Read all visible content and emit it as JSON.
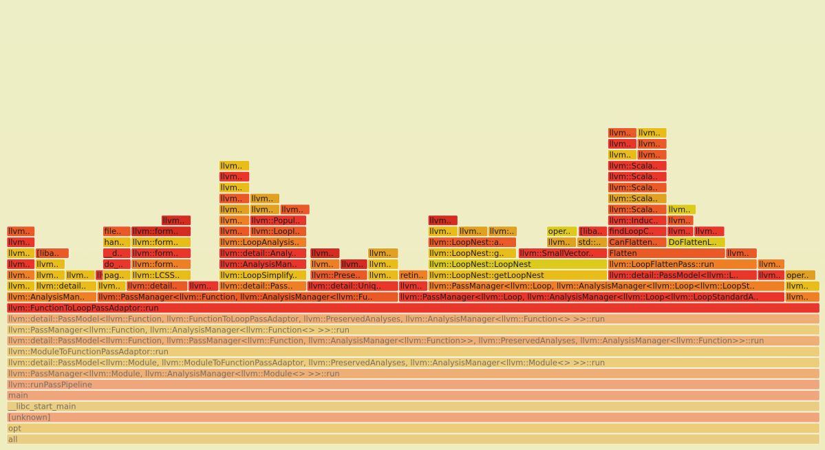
{
  "chart_data": {
    "type": "flamegraph",
    "x_unit": "width as percent of total samples",
    "colors": {
      "red": "#e8372a",
      "crimson": "#d42c1f",
      "orange_red": "#ea5a26",
      "orange": "#ef7f24",
      "dark_orange": "#e0a020",
      "gold": "#e8bd1a",
      "yellow": "#dccb1c",
      "salmon": "#f19a72",
      "tan": "#e9c878",
      "peach": "#efb26c",
      "light_orange": "#eea56b",
      "pale": "#ecc86f"
    },
    "frames": [
      {
        "label": "all",
        "depth": 0,
        "start": 0,
        "width": 100,
        "color": "tan",
        "dim": true
      },
      {
        "label": "opt",
        "depth": 1,
        "start": 0,
        "width": 100,
        "color": "pale",
        "dim": true
      },
      {
        "label": "[unknown]",
        "depth": 2,
        "start": 0,
        "width": 100,
        "color": "salmon",
        "dim": true
      },
      {
        "label": "__libc_start_main",
        "depth": 3,
        "start": 0,
        "width": 100,
        "color": "tan",
        "dim": true
      },
      {
        "label": "main",
        "depth": 4,
        "start": 0,
        "width": 100,
        "color": "salmon",
        "dim": true
      },
      {
        "label": "llvm::runPassPipeline",
        "depth": 5,
        "start": 0,
        "width": 100,
        "color": "salmon",
        "dim": true
      },
      {
        "label": "llvm::PassManager<llvm::Module, llvm::AnalysisManager<llvm::Module<> >>::run",
        "depth": 6,
        "start": 0,
        "width": 100,
        "color": "light_orange",
        "dim": true
      },
      {
        "label": "llvm::detail::PassModel<llvm::Module, llvm::ModuleToFunctionPassAdaptor, llvm::PreservedAnalyses, llvm::AnalysisManager<llvm::Module<> >>::run",
        "depth": 7,
        "start": 0,
        "width": 100,
        "color": "pale",
        "dim": true
      },
      {
        "label": "llvm::ModuleToFunctionPassAdaptor::run",
        "depth": 8,
        "start": 0,
        "width": 100,
        "color": "pale",
        "dim": true
      },
      {
        "label": "llvm::detail::PassModel<llvm::Function, llvm::PassManager<llvm::Function, llvm::AnalysisManager<llvm::Function>>, llvm::PreservedAnalyses, llvm::AnalysisManager<llvm::Function>>::run",
        "depth": 9,
        "start": 0,
        "width": 100,
        "color": "light_orange",
        "dim": true
      },
      {
        "label": "llvm::PassManager<llvm::Function, llvm::AnalysisManager<llvm::Function<> >>::run",
        "depth": 10,
        "start": 0,
        "width": 100,
        "color": "pale",
        "dim": true
      },
      {
        "label": "llvm::detail::PassModel<llvm::Function, llvm::FunctionToLoopPassAdaptor, llvm::PreservedAnalyses, llvm::AnalysisManager<llvm::Function<> >>::run",
        "depth": 11,
        "start": 0,
        "width": 100,
        "color": "light_orange",
        "dim": true
      },
      {
        "label": "llvm::FunctionToLoopPassAdaptor::run",
        "depth": 12,
        "start": 0,
        "width": 100,
        "color": "red"
      },
      {
        "label": "llvm::AnalysisMan..",
        "depth": 13,
        "start": 0,
        "width": 11.1,
        "color": "orange"
      },
      {
        "label": "llvm::PassManager<llvm::Function, llvm::AnalysisManager<llvm::Fu..",
        "depth": 13,
        "start": 11.1,
        "width": 37.1,
        "color": "orange_red"
      },
      {
        "label": "llvm::PassManager<llvm::Loop, llvm::AnalysisManager<llvm::Loop<llvm::LoopStandardA..",
        "depth": 13,
        "start": 48.2,
        "width": 47.5,
        "color": "red"
      },
      {
        "label": "llvm..",
        "depth": 13,
        "start": 95.7,
        "width": 4.3,
        "color": "orange"
      },
      {
        "label": "llvm..",
        "depth": 14,
        "start": 0,
        "width": 3.5,
        "color": "gold"
      },
      {
        "label": "llvm::detail..",
        "depth": 14,
        "start": 3.5,
        "width": 7.6,
        "color": "gold"
      },
      {
        "label": "llvm..",
        "depth": 14,
        "start": 11.1,
        "width": 3.6,
        "color": "gold"
      },
      {
        "label": "llvm::detail..",
        "depth": 14,
        "start": 14.7,
        "width": 7.6,
        "color": "orange_red"
      },
      {
        "label": "llvm..",
        "depth": 14,
        "start": 22.3,
        "width": 3.8,
        "color": "red"
      },
      {
        "label": "llvm::detail::Pass..",
        "depth": 14,
        "start": 26.1,
        "width": 10.8,
        "color": "orange"
      },
      {
        "label": "llvm::detail::Uniq..",
        "depth": 14,
        "start": 36.9,
        "width": 11.3,
        "color": "red"
      },
      {
        "label": "llvm..",
        "depth": 14,
        "start": 48.2,
        "width": 3.6,
        "color": "red"
      },
      {
        "label": "llvm::PassManager<llvm::Loop, llvm::AnalysisManager<llvm::Loop<llvm::LoopSt..",
        "depth": 14,
        "start": 51.8,
        "width": 43.9,
        "color": "orange"
      },
      {
        "label": "llvm..",
        "depth": 14,
        "start": 95.7,
        "width": 4.3,
        "color": "gold"
      },
      {
        "label": "llvm..",
        "depth": 15,
        "start": 0,
        "width": 3.5,
        "color": "orange"
      },
      {
        "label": "llvm..",
        "depth": 15,
        "start": 3.5,
        "width": 3.7,
        "color": "gold"
      },
      {
        "label": "llvm..",
        "depth": 15,
        "start": 7.2,
        "width": 3.7,
        "color": "gold"
      },
      {
        "label": "llvm..",
        "depth": 15,
        "start": 10.9,
        "width": 3.3,
        "color": "red"
      },
      {
        "label": "pag..",
        "depth": 15,
        "start": 11.8,
        "width": 3.5,
        "color": "gold"
      },
      {
        "label": "llvm::LCSS..",
        "depth": 15,
        "start": 15.3,
        "width": 7.4,
        "color": "gold"
      },
      {
        "label": "llvm::LoopSimplify..",
        "depth": 15,
        "start": 26.1,
        "width": 10.8,
        "color": "gold"
      },
      {
        "label": "llvm::Prese..",
        "depth": 15,
        "start": 37.3,
        "width": 7.1,
        "color": "orange_red"
      },
      {
        "label": "llvm..",
        "depth": 15,
        "start": 44.4,
        "width": 3.8,
        "color": "gold"
      },
      {
        "label": "retin..",
        "depth": 15,
        "start": 48.2,
        "width": 3.6,
        "color": "orange"
      },
      {
        "label": "llvm::LoopNest::getLoopNest",
        "depth": 15,
        "start": 51.8,
        "width": 22.1,
        "color": "gold"
      },
      {
        "label": "llvm::detail::PassModel<llvm::L..",
        "depth": 15,
        "start": 73.9,
        "width": 18.4,
        "color": "red"
      },
      {
        "label": "llvm..",
        "depth": 15,
        "start": 92.3,
        "width": 3.4,
        "color": "red"
      },
      {
        "label": "oper..",
        "depth": 15,
        "start": 95.7,
        "width": 3.8,
        "color": "dark_orange"
      },
      {
        "label": "llvm..",
        "depth": 16,
        "start": 0,
        "width": 3.5,
        "color": "red"
      },
      {
        "label": "llvm..",
        "depth": 16,
        "start": 3.5,
        "width": 3.7,
        "color": "gold"
      },
      {
        "label": "do_..",
        "depth": 16,
        "start": 11.8,
        "width": 3.5,
        "color": "red"
      },
      {
        "label": "llvm::form..",
        "depth": 16,
        "start": 15.3,
        "width": 7.4,
        "color": "orange"
      },
      {
        "label": "llvm::AnalysisMan..",
        "depth": 16,
        "start": 26.1,
        "width": 10.8,
        "color": "red"
      },
      {
        "label": "llvm..",
        "depth": 16,
        "start": 37.3,
        "width": 3.7,
        "color": "orange"
      },
      {
        "label": "llvm..",
        "depth": 16,
        "start": 41.0,
        "width": 3.4,
        "color": "crimson"
      },
      {
        "label": "llvm..",
        "depth": 16,
        "start": 44.4,
        "width": 3.8,
        "color": "gold"
      },
      {
        "label": "llvm::LoopNest::LoopNest",
        "depth": 16,
        "start": 51.8,
        "width": 22.1,
        "color": "yellow"
      },
      {
        "label": "llvm::LoopFlattenPass::run",
        "depth": 16,
        "start": 73.9,
        "width": 18.4,
        "color": "orange"
      },
      {
        "label": "llvm..",
        "depth": 16,
        "start": 92.3,
        "width": 3.4,
        "color": "orange"
      },
      {
        "label": "llvm..",
        "depth": 17,
        "start": 0,
        "width": 3.5,
        "color": "gold"
      },
      {
        "label": "[liba..",
        "depth": 17,
        "start": 3.5,
        "width": 4.2,
        "color": "orange_red"
      },
      {
        "label": "__d..",
        "depth": 17,
        "start": 11.8,
        "width": 3.5,
        "color": "red"
      },
      {
        "label": "llvm::form..",
        "depth": 17,
        "start": 15.3,
        "width": 7.4,
        "color": "red"
      },
      {
        "label": "llvm::detail::Analy..",
        "depth": 17,
        "start": 26.1,
        "width": 10.8,
        "color": "red"
      },
      {
        "label": "llvm..",
        "depth": 17,
        "start": 37.3,
        "width": 3.7,
        "color": "crimson"
      },
      {
        "label": "llvm..",
        "depth": 17,
        "start": 44.4,
        "width": 3.8,
        "color": "dark_orange"
      },
      {
        "label": "llvm::LoopNest::g..",
        "depth": 17,
        "start": 51.8,
        "width": 10.9,
        "color": "gold"
      },
      {
        "label": "llvm::SmallVector..",
        "depth": 17,
        "start": 62.9,
        "width": 11.0,
        "color": "red"
      },
      {
        "label": "Flatten",
        "depth": 17,
        "start": 73.9,
        "width": 14.5,
        "color": "orange_red"
      },
      {
        "label": "llvm..",
        "depth": 17,
        "start": 88.4,
        "width": 3.9,
        "color": "orange_red"
      },
      {
        "label": "llvm..",
        "depth": 18,
        "start": 0,
        "width": 3.5,
        "color": "red"
      },
      {
        "label": "han..",
        "depth": 18,
        "start": 11.8,
        "width": 3.5,
        "color": "gold"
      },
      {
        "label": "llvm::form..",
        "depth": 18,
        "start": 15.3,
        "width": 7.4,
        "color": "gold"
      },
      {
        "label": "llvm::LoopAnalysis..",
        "depth": 18,
        "start": 26.1,
        "width": 10.8,
        "color": "orange"
      },
      {
        "label": "llvm::LoopNest::a..",
        "depth": 18,
        "start": 51.8,
        "width": 10.9,
        "color": "orange_red"
      },
      {
        "label": "llvm..",
        "depth": 18,
        "start": 66.4,
        "width": 3.7,
        "color": "dark_orange"
      },
      {
        "label": "std::..",
        "depth": 18,
        "start": 70.1,
        "width": 3.8,
        "color": "dark_orange"
      },
      {
        "label": "CanFlatten..",
        "depth": 18,
        "start": 73.9,
        "width": 7.3,
        "color": "orange_red"
      },
      {
        "label": "DoFlattenL..",
        "depth": 18,
        "start": 81.2,
        "width": 7.2,
        "color": "yellow"
      },
      {
        "label": "llvm..",
        "depth": 19,
        "start": 0,
        "width": 3.5,
        "color": "orange_red"
      },
      {
        "label": "file..",
        "depth": 19,
        "start": 11.8,
        "width": 3.5,
        "color": "orange_red"
      },
      {
        "label": "llvm::form..",
        "depth": 19,
        "start": 15.3,
        "width": 7.4,
        "color": "crimson"
      },
      {
        "label": "llvm..",
        "depth": 19,
        "start": 26.1,
        "width": 3.8,
        "color": "orange_red"
      },
      {
        "label": "llvm::LoopI..",
        "depth": 19,
        "start": 29.9,
        "width": 7.0,
        "color": "orange_red"
      },
      {
        "label": "llvm..",
        "depth": 19,
        "start": 51.8,
        "width": 3.7,
        "color": "gold"
      },
      {
        "label": "llvm..",
        "depth": 19,
        "start": 55.5,
        "width": 3.7,
        "color": "dark_orange"
      },
      {
        "label": "llvm:..",
        "depth": 19,
        "start": 59.2,
        "width": 3.6,
        "color": "dark_orange"
      },
      {
        "label": "oper..",
        "depth": 19,
        "start": 66.4,
        "width": 3.8,
        "color": "yellow"
      },
      {
        "label": "[liba..",
        "depth": 19,
        "start": 70.3,
        "width": 3.6,
        "color": "red"
      },
      {
        "label": "findLoopC..",
        "depth": 19,
        "start": 73.9,
        "width": 7.3,
        "color": "red"
      },
      {
        "label": "llvm..",
        "depth": 19,
        "start": 81.2,
        "width": 3.3,
        "color": "red"
      },
      {
        "label": "llvm..",
        "depth": 19,
        "start": 84.5,
        "width": 3.8,
        "color": "red"
      },
      {
        "label": "llvm..",
        "depth": 20,
        "start": 19.0,
        "width": 3.7,
        "color": "crimson"
      },
      {
        "label": "llvm..",
        "depth": 20,
        "start": 26.1,
        "width": 3.8,
        "color": "orange"
      },
      {
        "label": "llvm::Popul..",
        "depth": 20,
        "start": 29.9,
        "width": 7.0,
        "color": "red"
      },
      {
        "label": "llvm..",
        "depth": 20,
        "start": 51.8,
        "width": 3.7,
        "color": "crimson"
      },
      {
        "label": "llvm::Induc..",
        "depth": 20,
        "start": 73.9,
        "width": 7.3,
        "color": "red"
      },
      {
        "label": "llvm..",
        "depth": 20,
        "start": 81.2,
        "width": 3.3,
        "color": "orange_red"
      },
      {
        "label": "llvm..",
        "depth": 21,
        "start": 26.1,
        "width": 3.8,
        "color": "dark_orange"
      },
      {
        "label": "llvm..",
        "depth": 21,
        "start": 29.9,
        "width": 3.7,
        "color": "dark_orange"
      },
      {
        "label": "llvm..",
        "depth": 21,
        "start": 33.6,
        "width": 3.7,
        "color": "orange_red"
      },
      {
        "label": "llvm::Scala..",
        "depth": 21,
        "start": 73.9,
        "width": 7.3,
        "color": "orange_red"
      },
      {
        "label": "llvm..",
        "depth": 21,
        "start": 81.2,
        "width": 3.6,
        "color": "yellow"
      },
      {
        "label": "llvm..",
        "depth": 22,
        "start": 26.1,
        "width": 3.8,
        "color": "orange_red"
      },
      {
        "label": "llvm..",
        "depth": 22,
        "start": 29.9,
        "width": 3.7,
        "color": "dark_orange"
      },
      {
        "label": "llvm::Scala..",
        "depth": 22,
        "start": 73.9,
        "width": 7.3,
        "color": "dark_orange"
      },
      {
        "label": "llvm..",
        "depth": 23,
        "start": 26.1,
        "width": 3.8,
        "color": "gold"
      },
      {
        "label": "llvm::Scala..",
        "depth": 23,
        "start": 73.9,
        "width": 7.3,
        "color": "orange_red"
      },
      {
        "label": "llvm..",
        "depth": 24,
        "start": 26.1,
        "width": 3.8,
        "color": "red"
      },
      {
        "label": "llvm::Scala..",
        "depth": 24,
        "start": 73.9,
        "width": 7.3,
        "color": "red"
      },
      {
        "label": "llvm..",
        "depth": 25,
        "start": 26.1,
        "width": 3.8,
        "color": "gold"
      },
      {
        "label": "llvm::Scala..",
        "depth": 25,
        "start": 73.9,
        "width": 7.3,
        "color": "red"
      },
      {
        "label": "llvm..",
        "depth": 26,
        "start": 73.9,
        "width": 3.6,
        "color": "gold"
      },
      {
        "label": "llvm..",
        "depth": 26,
        "start": 77.5,
        "width": 3.7,
        "color": "orange_red"
      },
      {
        "label": "llvm..",
        "depth": 27,
        "start": 73.9,
        "width": 3.6,
        "color": "red"
      },
      {
        "label": "llvm..",
        "depth": 27,
        "start": 77.5,
        "width": 3.7,
        "color": "orange_red"
      },
      {
        "label": "llvm..",
        "depth": 28,
        "start": 73.9,
        "width": 3.6,
        "color": "orange_red"
      },
      {
        "label": "llvm..",
        "depth": 28,
        "start": 77.5,
        "width": 3.7,
        "color": "gold"
      }
    ]
  }
}
